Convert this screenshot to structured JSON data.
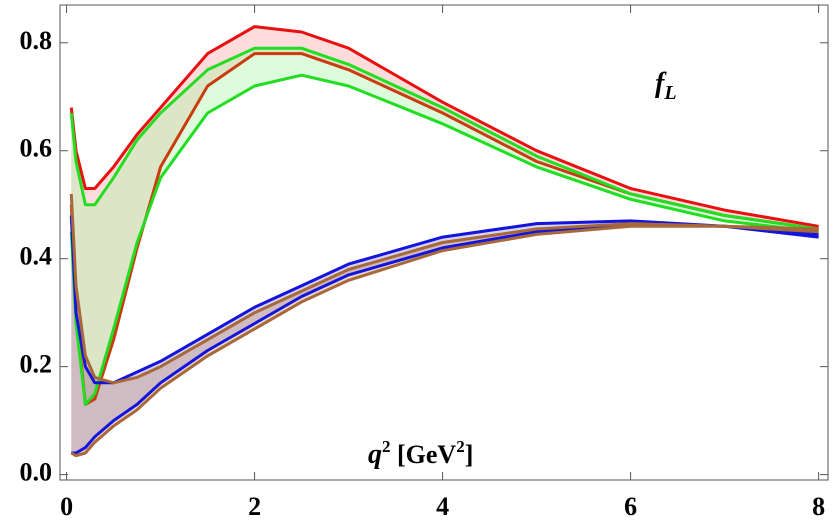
{
  "chart_data": {
    "type": "band",
    "x": [
      0.05,
      0.1,
      0.2,
      0.3,
      0.5,
      0.75,
      1.0,
      1.5,
      2,
      2.5,
      3,
      4,
      5,
      6,
      7,
      8
    ],
    "xlim": [
      -0.07,
      8.1
    ],
    "ylim": [
      -0.01,
      0.87
    ],
    "xticks": [
      0,
      2,
      4,
      6,
      8
    ],
    "yticks": [
      {
        "value": 0,
        "label": "0.0"
      },
      0.2,
      0.4,
      0.6,
      0.8
    ],
    "bands": [
      {
        "color": "#e81010",
        "fill": "#ff9a9a",
        "upper": [
          0.68,
          0.6,
          0.53,
          0.53,
          0.57,
          0.63,
          0.68,
          0.78,
          0.83,
          0.82,
          0.79,
          0.69,
          0.6,
          0.53,
          0.49,
          0.46
        ],
        "lower": [
          0.5,
          0.3,
          0.13,
          0.14,
          0.25,
          0.42,
          0.57,
          0.72,
          0.78,
          0.78,
          0.75,
          0.67,
          0.58,
          0.52,
          0.48,
          0.455
        ],
        "lower_color": "#c83c10"
      },
      {
        "color": "#22dd22",
        "fill": "#9cf59c",
        "upper": [
          0.67,
          0.58,
          0.5,
          0.5,
          0.55,
          0.62,
          0.67,
          0.75,
          0.79,
          0.79,
          0.76,
          0.68,
          0.59,
          0.52,
          0.48,
          0.455
        ],
        "lower": [
          0.45,
          0.28,
          0.13,
          0.15,
          0.27,
          0.43,
          0.55,
          0.67,
          0.72,
          0.74,
          0.72,
          0.65,
          0.57,
          0.51,
          0.47,
          0.45
        ],
        "lower_color": "#22dd22"
      },
      {
        "color": "#1414dd",
        "fill": "#8c80d0",
        "upper": [
          0.48,
          0.3,
          0.2,
          0.17,
          0.17,
          0.19,
          0.21,
          0.26,
          0.31,
          0.35,
          0.39,
          0.44,
          0.465,
          0.47,
          0.46,
          0.445
        ],
        "lower": [
          0.04,
          0.04,
          0.05,
          0.07,
          0.1,
          0.13,
          0.17,
          0.23,
          0.28,
          0.33,
          0.37,
          0.42,
          0.45,
          0.465,
          0.46,
          0.44
        ],
        "lower_color": "#1414dd"
      },
      {
        "color": "#a8693a",
        "fill": "#c09070",
        "upper": [
          0.52,
          0.35,
          0.22,
          0.18,
          0.17,
          0.18,
          0.2,
          0.25,
          0.3,
          0.34,
          0.38,
          0.43,
          0.455,
          0.465,
          0.46,
          0.455
        ],
        "lower": [
          0.04,
          0.035,
          0.04,
          0.06,
          0.09,
          0.12,
          0.16,
          0.22,
          0.27,
          0.32,
          0.36,
          0.415,
          0.445,
          0.46,
          0.46,
          0.45
        ],
        "lower_color": "#a8693a"
      }
    ],
    "annotations": [
      {
        "text": "f",
        "sub": "L"
      },
      {
        "text": "q",
        "sup": "2",
        "unit": " [GeV",
        "unit_sup": "2",
        "close": "]"
      }
    ]
  }
}
